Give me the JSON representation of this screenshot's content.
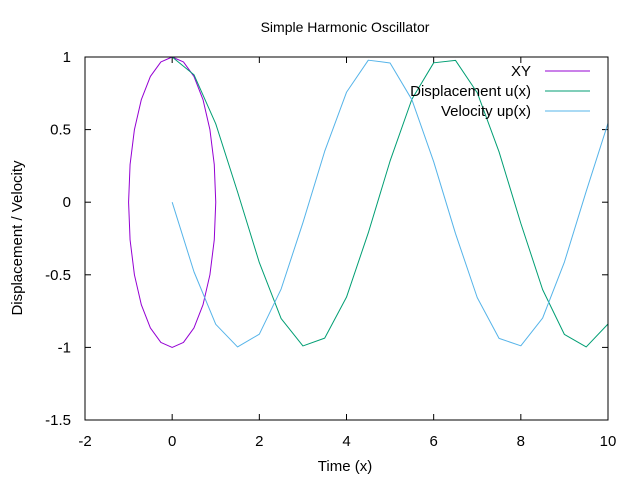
{
  "chart_data": {
    "type": "line",
    "title": "Simple Harmonic Oscillator",
    "xlabel": "Time (x)",
    "ylabel": "Displacement / Velocity",
    "xlim": [
      -2,
      10
    ],
    "ylim": [
      -1.5,
      1
    ],
    "xticks": [
      -2,
      0,
      2,
      4,
      6,
      8,
      10
    ],
    "yticks": [
      -1.5,
      -1,
      -0.5,
      0,
      0.5,
      1
    ],
    "grid": false,
    "legend_position": "top-right",
    "series": [
      {
        "name": "XY",
        "color": "#9400d3",
        "x": [
          0,
          0.259,
          0.5,
          0.707,
          0.866,
          0.966,
          1,
          0.966,
          0.866,
          0.707,
          0.5,
          0.259,
          0,
          -0.259,
          -0.5,
          -0.707,
          -0.866,
          -0.966,
          -1,
          -0.966,
          -0.866,
          -0.707,
          -0.5,
          -0.259,
          0
        ],
        "y": [
          1,
          0.966,
          0.866,
          0.707,
          0.5,
          0.259,
          0,
          -0.259,
          -0.5,
          -0.707,
          -0.866,
          -0.966,
          -1,
          -0.966,
          -0.866,
          -0.707,
          -0.5,
          -0.259,
          0,
          0.259,
          0.5,
          0.707,
          0.866,
          0.966,
          1
        ]
      },
      {
        "name": "Displacement u(x)",
        "color": "#009e73",
        "x": [
          0,
          0.5,
          1,
          1.5,
          2,
          2.5,
          3,
          3.5,
          4,
          4.5,
          5,
          5.5,
          6,
          6.5,
          7,
          7.5,
          8,
          8.5,
          9,
          9.5,
          10
        ],
        "y": [
          1,
          0.878,
          0.54,
          0.071,
          -0.416,
          -0.801,
          -0.99,
          -0.936,
          -0.654,
          -0.211,
          0.284,
          0.709,
          0.96,
          0.977,
          0.754,
          0.347,
          -0.146,
          -0.602,
          -0.911,
          -0.997,
          -0.839
        ]
      },
      {
        "name": "Velocity up(x)",
        "color": "#56b4e9",
        "x": [
          0,
          0.5,
          1,
          1.5,
          2,
          2.5,
          3,
          3.5,
          4,
          4.5,
          5,
          5.5,
          6,
          6.5,
          7,
          7.5,
          8,
          8.5,
          9,
          9.5,
          10
        ],
        "y": [
          0,
          -0.479,
          -0.841,
          -0.997,
          -0.909,
          -0.598,
          -0.141,
          0.351,
          0.757,
          0.978,
          0.959,
          0.706,
          0.279,
          -0.215,
          -0.657,
          -0.938,
          -0.989,
          -0.798,
          -0.412,
          0.075,
          0.544
        ]
      }
    ]
  }
}
